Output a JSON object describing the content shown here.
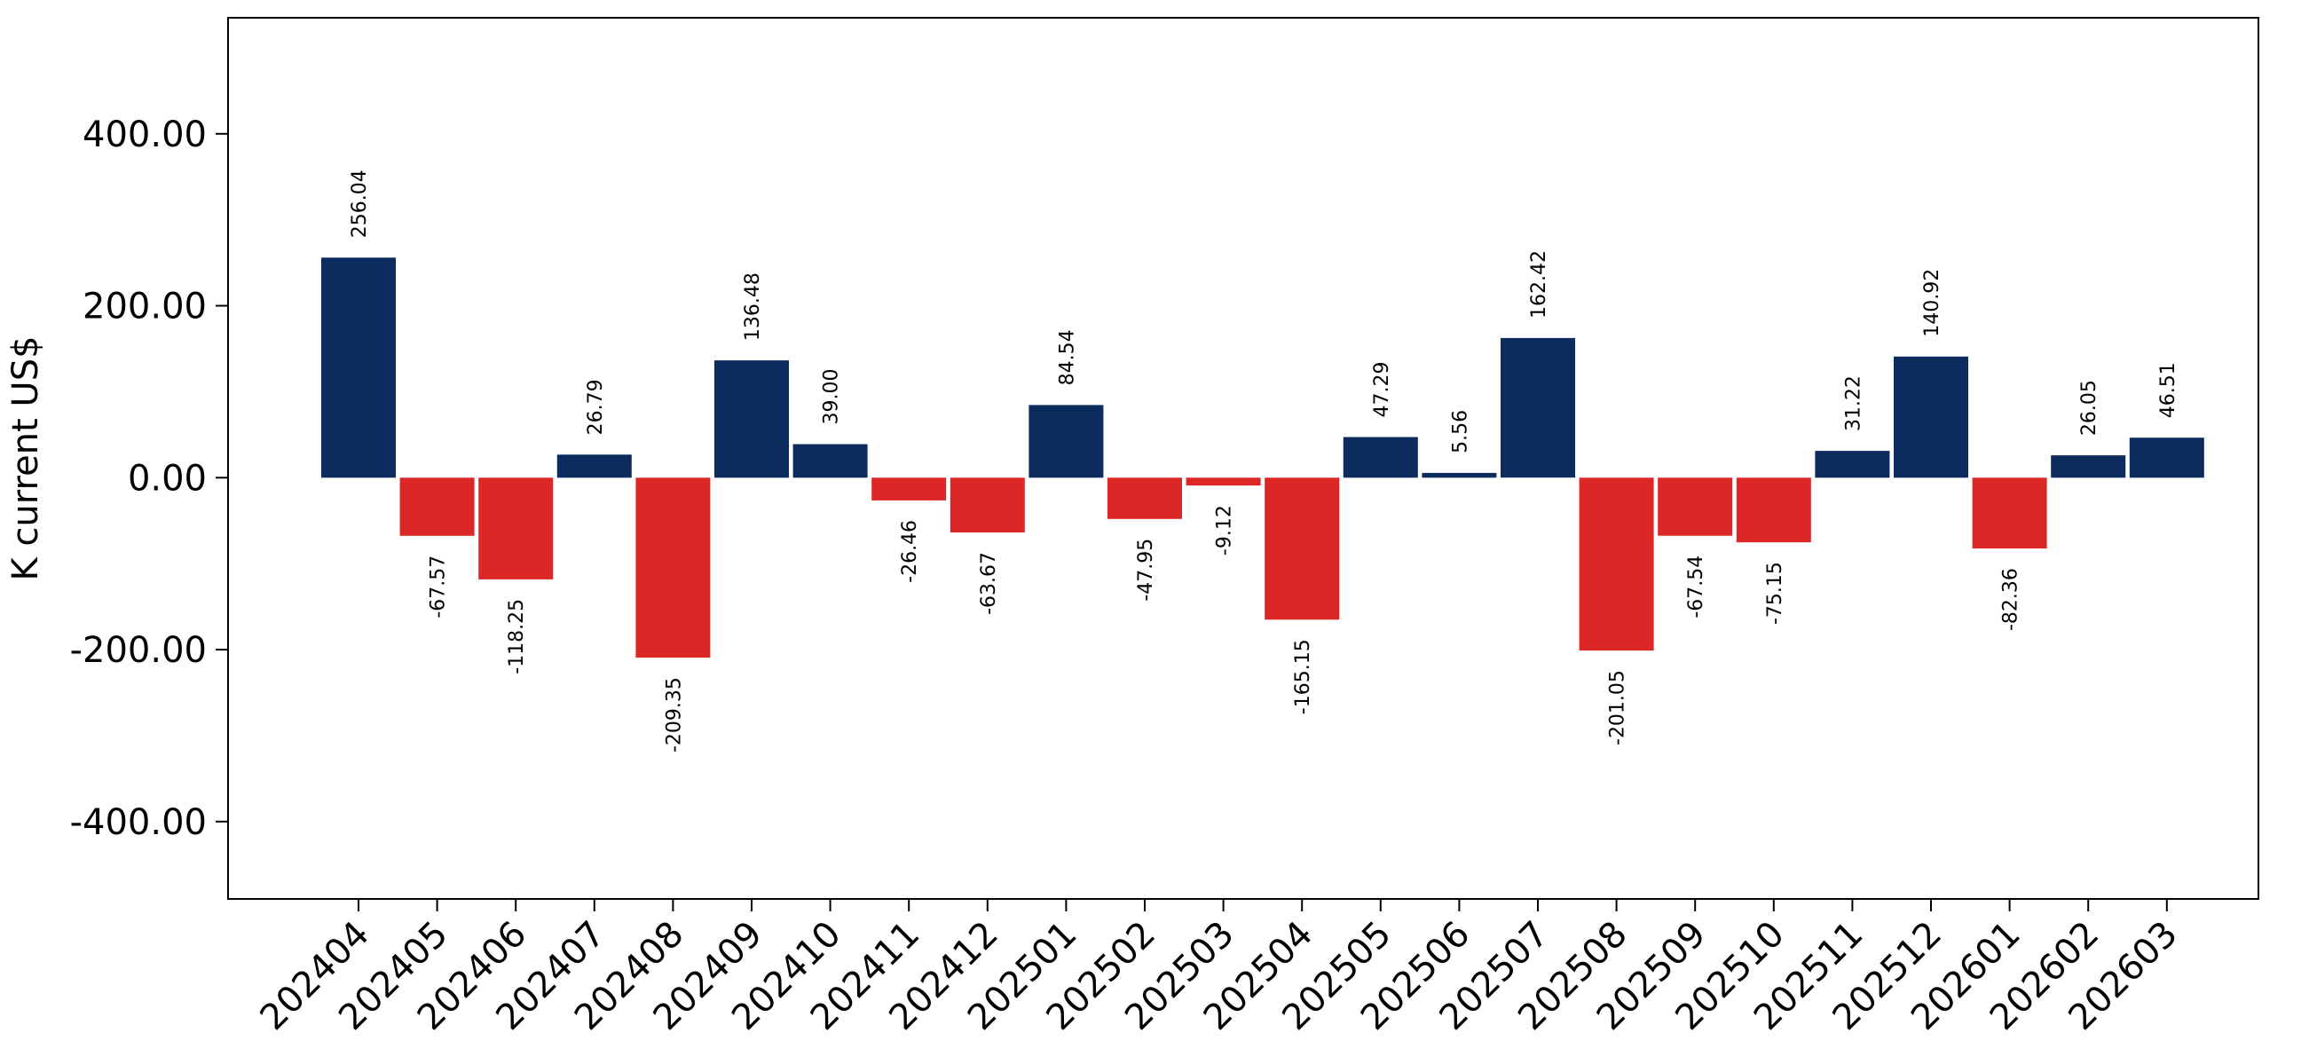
{
  "chart_data": {
    "type": "bar",
    "title": "",
    "xlabel": "",
    "ylabel": "K current US$",
    "ylim": [
      -490,
      535
    ],
    "yticks": [
      -400,
      -200,
      0,
      200,
      400
    ],
    "ytick_labels": [
      "-400.00",
      "-200.00",
      "0.00",
      "200.00",
      "400.00"
    ],
    "grid": false,
    "colors": {
      "positive": "#0d2c5e",
      "negative": "#dd2626"
    },
    "categories": [
      "202404",
      "202405",
      "202406",
      "202407",
      "202408",
      "202409",
      "202410",
      "202411",
      "202412",
      "202501",
      "202502",
      "202503",
      "202504",
      "202505",
      "202506",
      "202507",
      "202508",
      "202509",
      "202510",
      "202511",
      "202512",
      "202601",
      "202602",
      "202603"
    ],
    "values": [
      256.04,
      -67.57,
      -118.25,
      26.79,
      -209.35,
      136.48,
      39.0,
      -26.46,
      -63.67,
      84.54,
      -47.95,
      -9.12,
      -165.15,
      47.29,
      5.56,
      162.42,
      -201.05,
      -67.54,
      -75.15,
      31.22,
      140.92,
      -82.36,
      26.05,
      46.51
    ],
    "value_labels": [
      "256.04",
      "-67.57",
      "-118.25",
      "26.79",
      "-209.35",
      "136.48",
      "39.00",
      "-26.46",
      "-63.67",
      "84.54",
      "-47.95",
      "-9.12",
      "-165.15",
      "47.29",
      "5.56",
      "162.42",
      "-201.05",
      "-67.54",
      "-75.15",
      "31.22",
      "140.92",
      "-82.36",
      "26.05",
      "46.51"
    ]
  }
}
